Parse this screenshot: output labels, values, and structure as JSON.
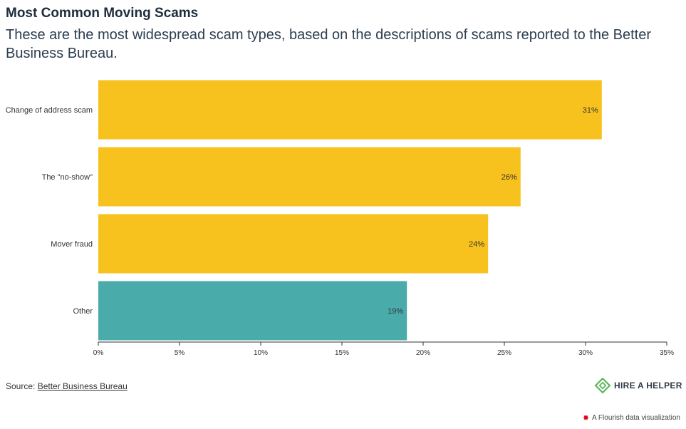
{
  "header": {
    "title": "Most Common Moving Scams",
    "subtitle": "These are the most widespread scam types, based on the descriptions of scams reported to the Better Business Bureau."
  },
  "chart_data": {
    "type": "bar",
    "orientation": "horizontal",
    "categories": [
      "Change of address scam",
      "The \"no-show\"",
      "Mover fraud",
      "Other"
    ],
    "values": [
      31,
      26,
      24,
      19
    ],
    "value_labels": [
      "31%",
      "26%",
      "24%",
      "19%"
    ],
    "colors": [
      "#f8c21e",
      "#f8c21e",
      "#f8c21e",
      "#4aabab"
    ],
    "xlim": [
      0,
      35
    ],
    "xticks": [
      0,
      5,
      10,
      15,
      20,
      25,
      30,
      35
    ],
    "xtick_labels": [
      "0%",
      "5%",
      "10%",
      "15%",
      "20%",
      "25%",
      "30%",
      "35%"
    ],
    "grid": false
  },
  "footer": {
    "source_prefix": "Source:",
    "source_link": "Better Business Bureau",
    "logo_text": "HIRE A HELPER",
    "logo_color": "#5cb85c",
    "flourish_text": "A Flourish data visualization"
  }
}
